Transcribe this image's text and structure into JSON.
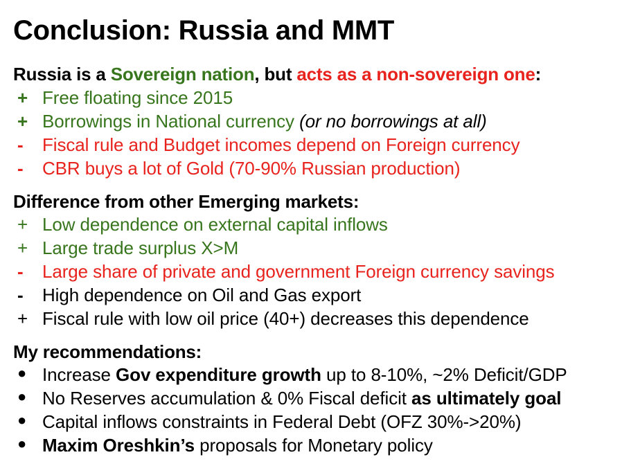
{
  "title": "Conclusion: Russia and MMT",
  "colors": {
    "green": "#38761d",
    "red": "#e8231e",
    "black": "#000000"
  },
  "section1": {
    "heading": {
      "part1": "Russia is a ",
      "part2": "Sovereign nation",
      "part3": ", but ",
      "part4": "acts as a non-sovereign one",
      "part5": ":"
    },
    "items": [
      {
        "mark": "+",
        "text": "Free floating since 2015"
      },
      {
        "mark": "+",
        "text": "Borrowings in National currency ",
        "extra": "(or no borrowings at all)"
      },
      {
        "mark": "-",
        "text": "Fiscal rule and Budget incomes depend on Foreign currency"
      },
      {
        "mark": "-",
        "text": "CBR buys a lot of Gold (70-90% Russian production)"
      }
    ]
  },
  "section2": {
    "heading": "Difference from other Emerging markets:",
    "items": [
      {
        "mark": "+",
        "text": "Low dependence on external capital inflows"
      },
      {
        "mark": "+",
        "text": "Large trade surplus X>M"
      },
      {
        "mark": "-",
        "text": "Large share of private and government Foreign currency savings"
      },
      {
        "mark": "-",
        "text": "High dependence on Oil and Gas export"
      },
      {
        "mark": "+",
        "text": "Fiscal rule with low oil price (40+) decreases this dependence"
      }
    ]
  },
  "section3": {
    "heading": "My recommendations:",
    "items": [
      {
        "mark": "●",
        "pre": "Increase ",
        "bold": "Gov expenditure growth",
        "post": " up to 8-10%, ~2% Deficit/GDP"
      },
      {
        "mark": "●",
        "pre": "No Reserves accumulation & 0% Fiscal deficit ",
        "bold": "as ultimately goal",
        "post": ""
      },
      {
        "mark": "●",
        "pre": "Capital inflows constraints in Federal Debt (OFZ 30%->20%)",
        "bold": "",
        "post": ""
      },
      {
        "mark": "●",
        "pre": "",
        "bold": "Maxim Oreshkin’s",
        "post": " proposals for Monetary policy"
      }
    ]
  }
}
